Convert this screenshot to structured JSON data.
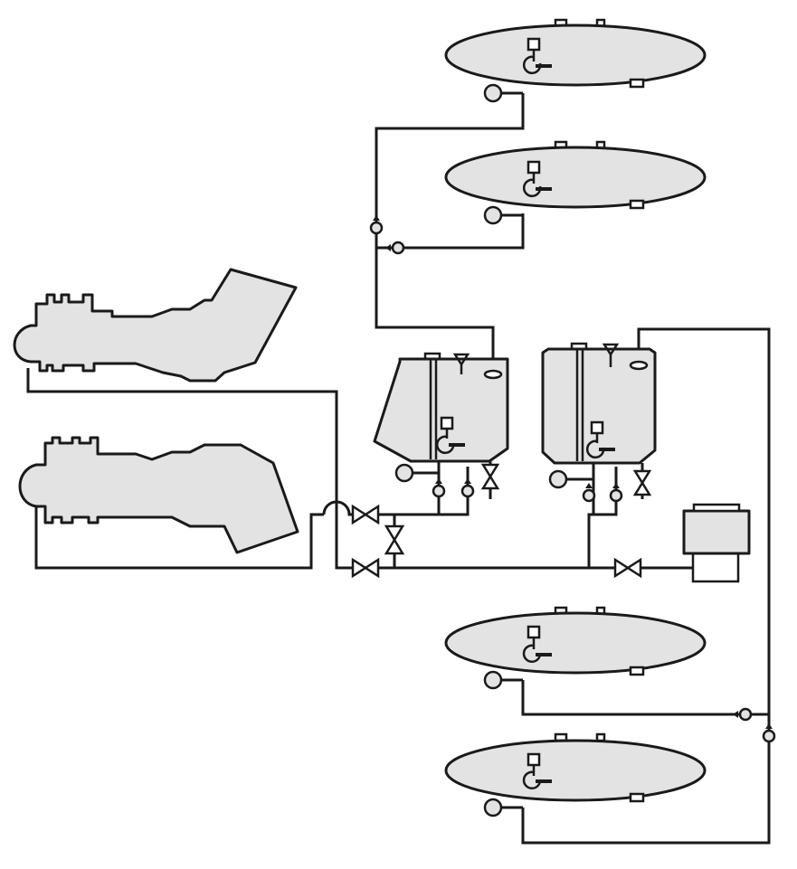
{
  "diagram": {
    "colors": {
      "stroke": "#1a1a1a",
      "fill": "#e3e3e3",
      "background": "#ffffff"
    },
    "components": {
      "storage_tanks": 4,
      "day_tanks": 2,
      "turbine_engines": 2,
      "pump_unit": 1,
      "gate_valves": 4,
      "check_valves": 8,
      "drain_valves": 2
    }
  }
}
